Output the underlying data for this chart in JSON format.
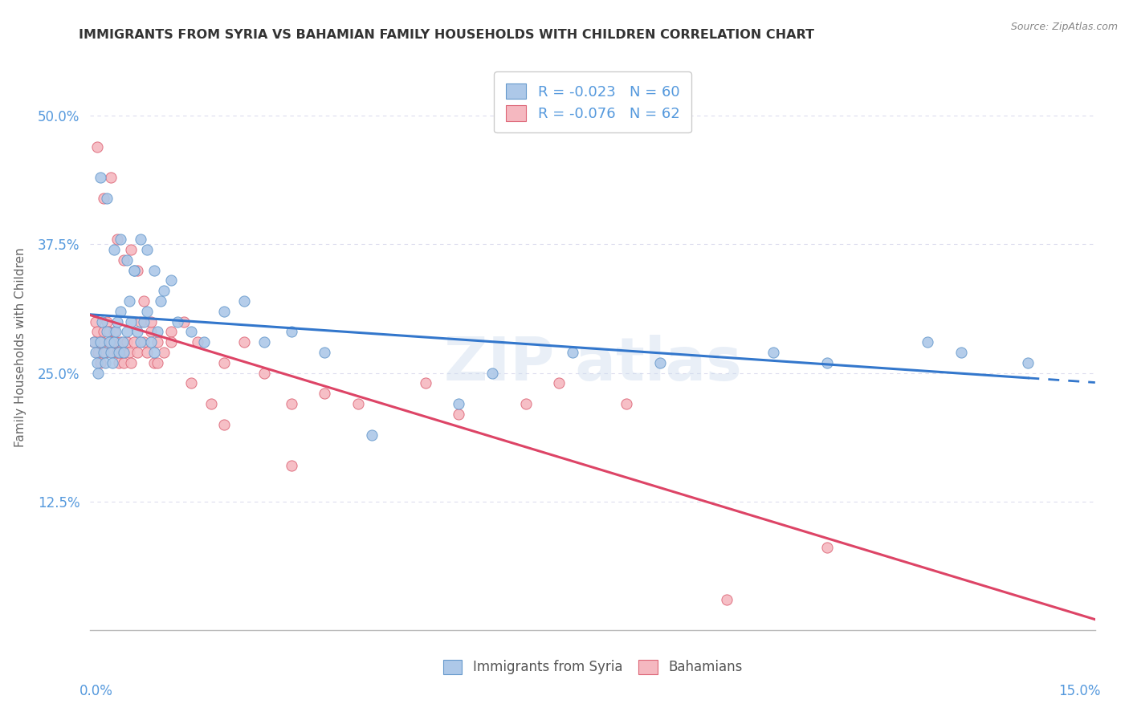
{
  "title": "IMMIGRANTS FROM SYRIA VS BAHAMIAN FAMILY HOUSEHOLDS WITH CHILDREN CORRELATION CHART",
  "source": "Source: ZipAtlas.com",
  "xlabel_bottom_left": "0.0%",
  "xlabel_bottom_right": "15.0%",
  "ylabel": "Family Households with Children",
  "xlim": [
    0.0,
    15.0
  ],
  "ylim": [
    0.0,
    55.0
  ],
  "yticks": [
    12.5,
    25.0,
    37.5,
    50.0
  ],
  "ytick_labels": [
    "12.5%",
    "25.0%",
    "37.5%",
    "50.0%"
  ],
  "legend_labels": [
    "Immigrants from Syria",
    "Bahamians"
  ],
  "series1_label": "R = -0.023   N = 60",
  "series2_label": "R = -0.076   N = 62",
  "series1_color": "#adc8e8",
  "series2_color": "#f5b8c0",
  "series1_edge": "#6699cc",
  "series2_edge": "#dd6677",
  "trendline1_color": "#3377cc",
  "trendline2_color": "#dd4466",
  "background_color": "#ffffff",
  "grid_color": "#ddddee",
  "title_color": "#333333",
  "axis_label_color": "#5599dd",
  "syria_x": [
    0.05,
    0.08,
    0.1,
    0.12,
    0.15,
    0.18,
    0.2,
    0.22,
    0.25,
    0.28,
    0.3,
    0.33,
    0.35,
    0.38,
    0.4,
    0.42,
    0.45,
    0.48,
    0.5,
    0.55,
    0.58,
    0.6,
    0.65,
    0.7,
    0.75,
    0.8,
    0.85,
    0.9,
    0.95,
    1.0,
    1.1,
    1.2,
    1.3,
    1.5,
    1.7,
    2.0,
    2.3,
    2.6,
    3.0,
    3.5,
    4.2,
    5.5,
    6.0,
    7.2,
    8.5,
    10.2,
    11.0,
    12.5,
    13.0,
    14.0,
    0.15,
    0.25,
    0.35,
    0.45,
    0.55,
    0.65,
    0.75,
    0.85,
    0.95,
    1.05
  ],
  "syria_y": [
    28,
    27,
    26,
    25,
    28,
    30,
    27,
    26,
    29,
    28,
    27,
    26,
    28,
    29,
    30,
    27,
    31,
    28,
    27,
    29,
    32,
    30,
    35,
    29,
    28,
    30,
    31,
    28,
    27,
    29,
    33,
    34,
    30,
    29,
    28,
    31,
    32,
    28,
    29,
    27,
    19,
    22,
    25,
    27,
    26,
    27,
    26,
    28,
    27,
    26,
    44,
    42,
    37,
    38,
    36,
    35,
    38,
    37,
    35,
    32
  ],
  "bahamas_x": [
    0.05,
    0.08,
    0.1,
    0.12,
    0.15,
    0.18,
    0.2,
    0.22,
    0.25,
    0.28,
    0.3,
    0.33,
    0.35,
    0.38,
    0.4,
    0.42,
    0.45,
    0.48,
    0.5,
    0.55,
    0.58,
    0.6,
    0.65,
    0.7,
    0.75,
    0.8,
    0.85,
    0.9,
    0.95,
    1.0,
    1.1,
    1.2,
    1.4,
    1.6,
    1.8,
    2.0,
    2.3,
    2.6,
    3.0,
    3.5,
    4.0,
    5.0,
    5.5,
    6.5,
    7.0,
    8.0,
    9.5,
    11.0,
    0.1,
    0.2,
    0.3,
    0.4,
    0.5,
    0.6,
    0.7,
    0.8,
    0.9,
    1.0,
    1.2,
    1.5,
    2.0,
    3.0
  ],
  "bahamas_y": [
    28,
    30,
    29,
    27,
    26,
    28,
    29,
    27,
    30,
    29,
    28,
    27,
    29,
    28,
    27,
    26,
    28,
    27,
    26,
    28,
    27,
    26,
    28,
    27,
    30,
    28,
    27,
    29,
    26,
    28,
    27,
    29,
    30,
    28,
    22,
    26,
    28,
    25,
    22,
    23,
    22,
    24,
    21,
    22,
    24,
    22,
    3,
    8,
    47,
    42,
    44,
    38,
    36,
    37,
    35,
    32,
    30,
    26,
    28,
    24,
    20,
    16
  ]
}
